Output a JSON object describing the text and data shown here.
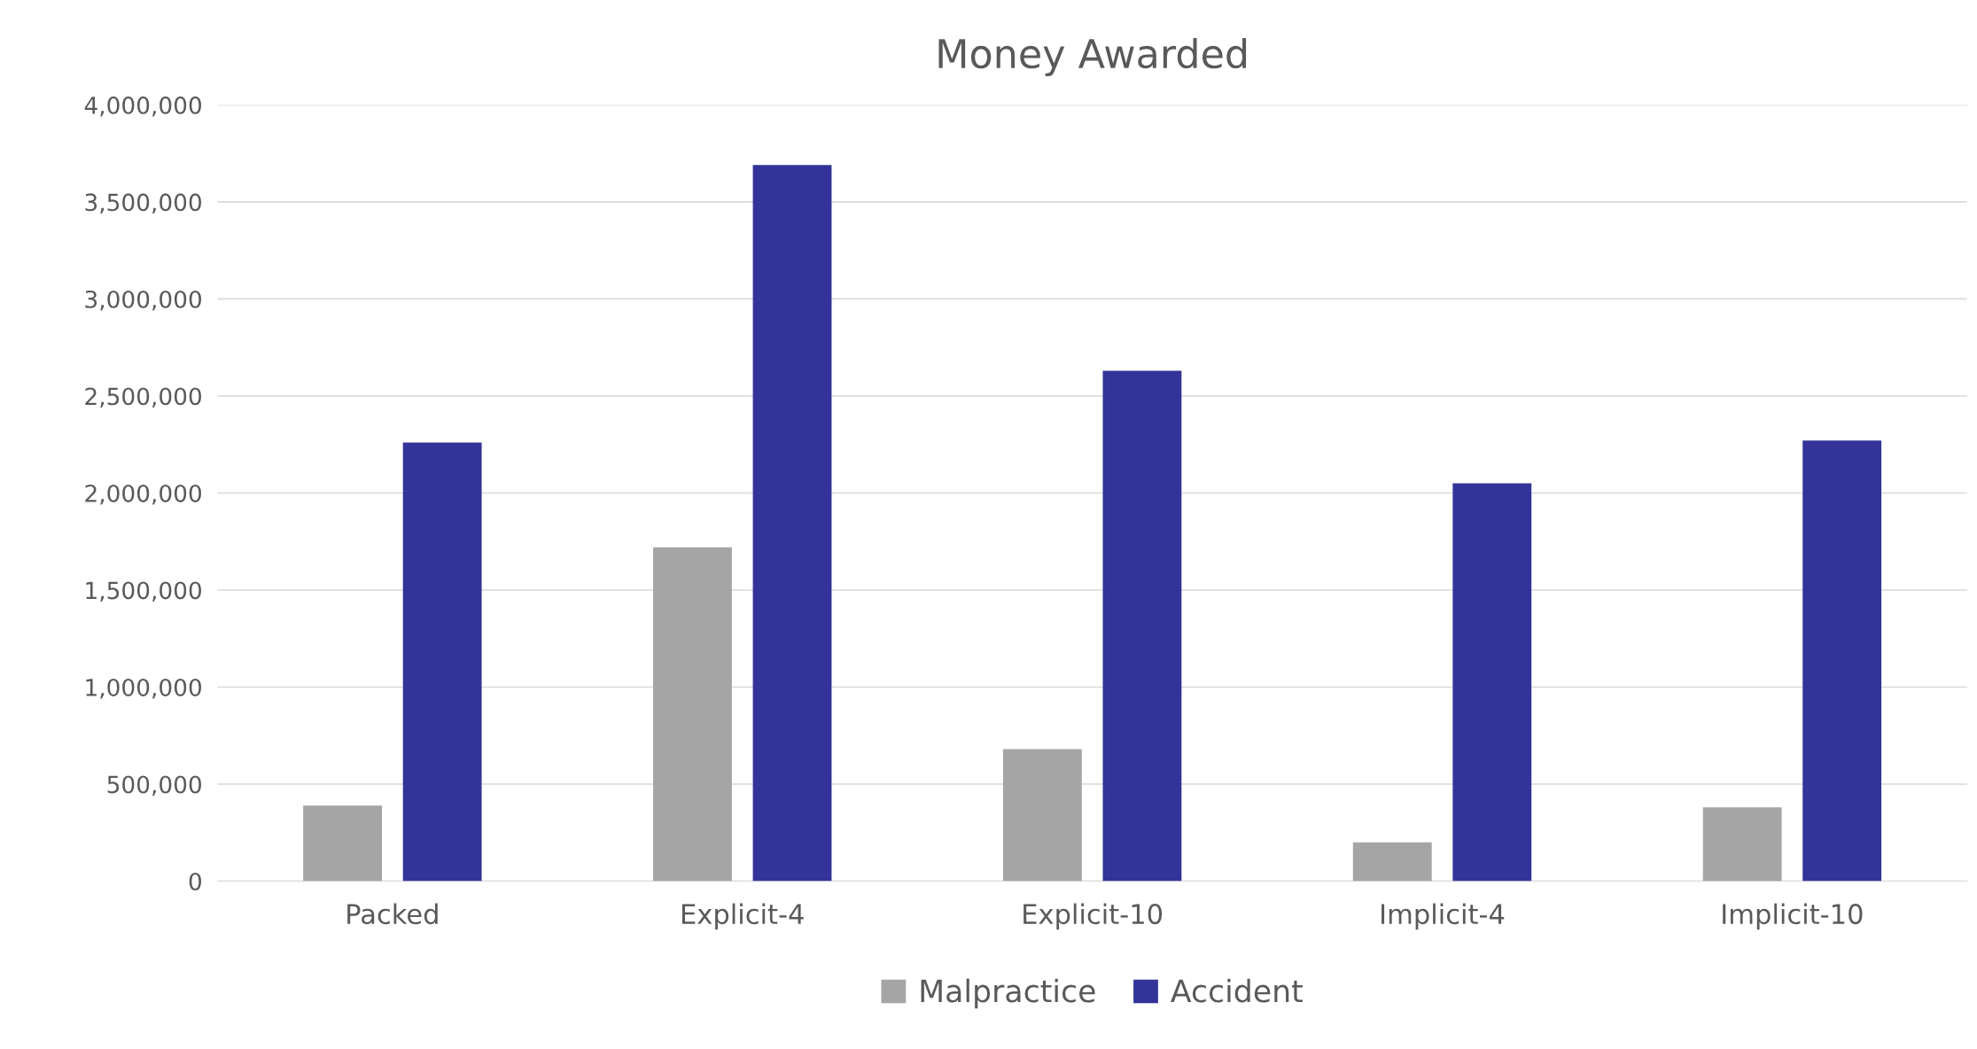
{
  "chart_data": {
    "type": "bar",
    "title": "Money Awarded",
    "categories": [
      "Packed",
      "Explicit-4",
      "Explicit-10",
      "Implicit-4",
      "Implicit-10"
    ],
    "series": [
      {
        "name": "Malpractice",
        "color": "#a5a5a5",
        "values": [
          390000,
          1720000,
          680000,
          200000,
          380000
        ]
      },
      {
        "name": "Accident",
        "color": "#333399",
        "values": [
          2260000,
          3690000,
          2630000,
          2050000,
          2270000
        ]
      }
    ],
    "ylim": [
      0,
      4000000
    ],
    "yticks": [
      0,
      {
        "value": 500000,
        "label": "500,000"
      },
      {
        "value": 1000000,
        "label": "1,000,000"
      },
      {
        "value": 1500000,
        "label": "1,500,000"
      },
      {
        "value": 2000000,
        "label": "2,000,000"
      },
      {
        "value": 2500000,
        "label": "2,500,000"
      },
      {
        "value": 3000000,
        "label": "3,000,000"
      },
      {
        "value": 3500000,
        "label": "3,500,000"
      },
      {
        "value": 4000000,
        "label": "4,000,000"
      }
    ],
    "grid": "y",
    "legend": "bottom"
  }
}
